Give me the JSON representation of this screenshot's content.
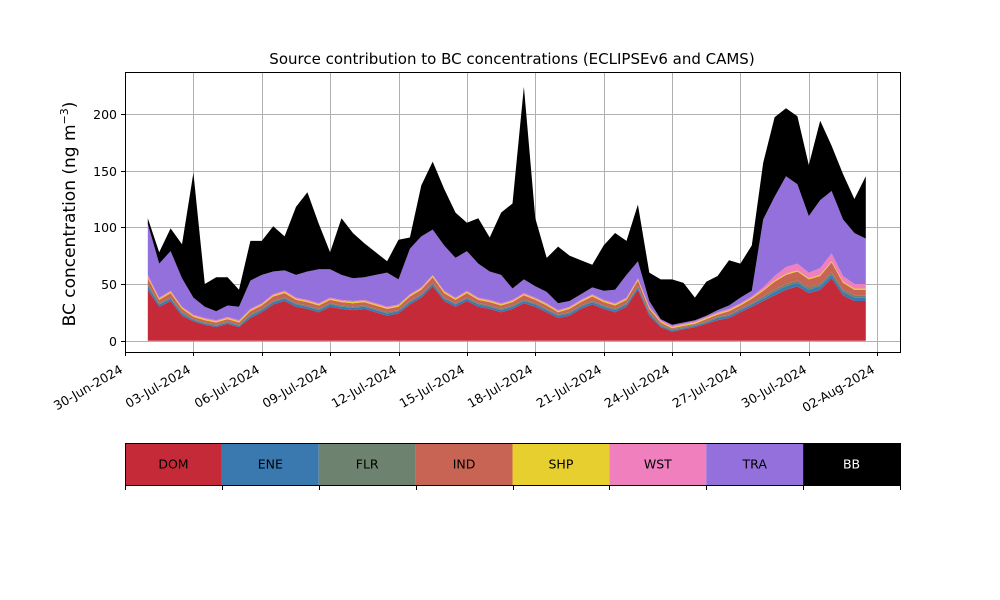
{
  "chart_data": {
    "type": "area",
    "stacked": true,
    "title": "Source contribution to BC concentrations (ECLIPSEv6 and CAMS)",
    "ylabel": "BC concentration (ng m",
    "ylabel_superscript": "−3",
    "ylabel_close": ")",
    "xlabel": "",
    "ylim": [
      -10,
      237
    ],
    "xlim": [
      "2024-06-30",
      "2024-08-03"
    ],
    "y_ticks": [
      0,
      50,
      100,
      150,
      200
    ],
    "x_ticks": [
      "30-Jun-2024",
      "03-Jul-2024",
      "06-Jul-2024",
      "09-Jul-2024",
      "12-Jul-2024",
      "15-Jul-2024",
      "18-Jul-2024",
      "21-Jul-2024",
      "24-Jul-2024",
      "27-Jul-2024",
      "30-Jul-2024",
      "02-Aug-2024"
    ],
    "grid": true,
    "x": [
      "2024-07-01",
      "2024-07-01T12",
      "2024-07-02",
      "2024-07-02T12",
      "2024-07-03",
      "2024-07-03T12",
      "2024-07-04",
      "2024-07-04T12",
      "2024-07-05",
      "2024-07-05T12",
      "2024-07-06",
      "2024-07-06T12",
      "2024-07-07",
      "2024-07-07T12",
      "2024-07-08",
      "2024-07-08T12",
      "2024-07-09",
      "2024-07-09T12",
      "2024-07-10",
      "2024-07-10T12",
      "2024-07-11",
      "2024-07-11T12",
      "2024-07-12",
      "2024-07-12T12",
      "2024-07-13",
      "2024-07-13T12",
      "2024-07-14",
      "2024-07-14T12",
      "2024-07-15",
      "2024-07-15T12",
      "2024-07-16",
      "2024-07-16T12",
      "2024-07-17",
      "2024-07-17T12",
      "2024-07-18",
      "2024-07-18T12",
      "2024-07-19",
      "2024-07-19T12",
      "2024-07-20",
      "2024-07-20T12",
      "2024-07-21",
      "2024-07-21T12",
      "2024-07-22",
      "2024-07-22T12",
      "2024-07-23",
      "2024-07-23T12",
      "2024-07-24",
      "2024-07-24T12",
      "2024-07-25",
      "2024-07-25T12",
      "2024-07-26",
      "2024-07-26T12",
      "2024-07-27",
      "2024-07-27T12",
      "2024-07-28",
      "2024-07-28T12",
      "2024-07-29",
      "2024-07-29T12",
      "2024-07-30",
      "2024-07-30T12",
      "2024-07-31",
      "2024-07-31T12",
      "2024-08-01",
      "2024-08-01T12"
    ],
    "series": [
      {
        "name": "DOM",
        "color": "#c42a37",
        "values": [
          45,
          30,
          35,
          22,
          17,
          14,
          12,
          15,
          12,
          20,
          25,
          32,
          35,
          30,
          28,
          25,
          30,
          28,
          27,
          28,
          25,
          22,
          24,
          32,
          38,
          48,
          35,
          30,
          35,
          30,
          28,
          25,
          28,
          33,
          30,
          25,
          20,
          22,
          28,
          32,
          28,
          25,
          30,
          45,
          22,
          12,
          8,
          10,
          12,
          15,
          18,
          20,
          25,
          30,
          35,
          40,
          45,
          48,
          42,
          45,
          55,
          40,
          35,
          35
        ]
      },
      {
        "name": "ENE",
        "color": "#3a78b0",
        "values": [
          3,
          2,
          2,
          2,
          1,
          1,
          1,
          1,
          1,
          2,
          2,
          2,
          2,
          2,
          2,
          2,
          2,
          2,
          2,
          2,
          2,
          2,
          2,
          2,
          2,
          2,
          2,
          2,
          2,
          2,
          2,
          2,
          2,
          2,
          2,
          2,
          2,
          2,
          2,
          2,
          2,
          2,
          2,
          2,
          2,
          1,
          1,
          1,
          1,
          1,
          2,
          2,
          2,
          2,
          2,
          3,
          3,
          3,
          3,
          3,
          3,
          3,
          3,
          3
        ]
      },
      {
        "name": "FLR",
        "color": "#6e8270",
        "values": [
          2,
          1,
          1,
          1,
          1,
          1,
          1,
          1,
          1,
          1,
          1,
          1,
          1,
          1,
          1,
          1,
          1,
          1,
          1,
          1,
          1,
          1,
          1,
          1,
          1,
          1,
          1,
          1,
          1,
          1,
          1,
          1,
          1,
          1,
          1,
          1,
          1,
          1,
          1,
          1,
          1,
          1,
          1,
          1,
          1,
          1,
          1,
          1,
          1,
          1,
          1,
          1,
          1,
          1,
          2,
          2,
          2,
          2,
          2,
          2,
          2,
          2,
          2,
          2
        ]
      },
      {
        "name": "IND",
        "color": "#c86454",
        "values": [
          5,
          3,
          4,
          3,
          2,
          2,
          2,
          2,
          2,
          3,
          3,
          4,
          4,
          3,
          3,
          3,
          3,
          3,
          3,
          3,
          3,
          3,
          3,
          4,
          4,
          5,
          4,
          3,
          4,
          3,
          3,
          3,
          3,
          4,
          3,
          3,
          2,
          3,
          3,
          4,
          3,
          3,
          3,
          5,
          3,
          2,
          1,
          1,
          1,
          2,
          2,
          3,
          3,
          4,
          5,
          7,
          8,
          8,
          7,
          7,
          9,
          6,
          5,
          5
        ]
      },
      {
        "name": "SHP",
        "color": "#e6cf2e",
        "values": [
          1,
          1,
          1,
          1,
          1,
          1,
          1,
          1,
          1,
          1,
          1,
          1,
          1,
          1,
          1,
          1,
          1,
          1,
          1,
          1,
          1,
          1,
          1,
          1,
          1,
          1,
          1,
          1,
          1,
          1,
          1,
          1,
          1,
          1,
          1,
          1,
          1,
          1,
          1,
          1,
          1,
          1,
          1,
          1,
          1,
          1,
          1,
          1,
          1,
          1,
          1,
          1,
          1,
          1,
          1,
          1,
          1,
          1,
          1,
          1,
          1,
          1,
          1,
          1
        ]
      },
      {
        "name": "WST",
        "color": "#f07fbe",
        "values": [
          2,
          1,
          1,
          1,
          1,
          1,
          1,
          1,
          1,
          1,
          1,
          1,
          1,
          1,
          1,
          1,
          1,
          1,
          1,
          1,
          1,
          1,
          1,
          1,
          1,
          1,
          1,
          1,
          1,
          1,
          1,
          1,
          1,
          1,
          1,
          1,
          1,
          1,
          1,
          1,
          1,
          1,
          1,
          1,
          1,
          1,
          1,
          1,
          1,
          1,
          1,
          1,
          1,
          1,
          2,
          4,
          6,
          6,
          5,
          6,
          7,
          5,
          4,
          4
        ]
      },
      {
        "name": "TRA",
        "color": "#9370db",
        "values": [
          45,
          30,
          35,
          25,
          15,
          10,
          8,
          10,
          12,
          25,
          25,
          20,
          18,
          20,
          25,
          30,
          25,
          22,
          20,
          20,
          25,
          30,
          22,
          40,
          45,
          40,
          40,
          35,
          35,
          30,
          25,
          25,
          10,
          12,
          10,
          10,
          6,
          5,
          5,
          6,
          8,
          12,
          20,
          15,
          5,
          1,
          1,
          1,
          1,
          1,
          2,
          3,
          5,
          5,
          60,
          70,
          80,
          70,
          50,
          60,
          55,
          50,
          45,
          40
        ]
      },
      {
        "name": "BB",
        "color": "#000000",
        "values": [
          5,
          10,
          20,
          30,
          110,
          20,
          30,
          25,
          15,
          35,
          30,
          40,
          30,
          60,
          70,
          40,
          15,
          50,
          40,
          30,
          20,
          10,
          35,
          10,
          45,
          60,
          50,
          40,
          25,
          40,
          30,
          55,
          75,
          170,
          60,
          30,
          50,
          40,
          30,
          20,
          40,
          50,
          30,
          50,
          25,
          35,
          40,
          35,
          20,
          30,
          30,
          40,
          30,
          40,
          50,
          70,
          60,
          60,
          45,
          70,
          40,
          40,
          30,
          55
        ]
      }
    ],
    "legend_placement": "below-plot"
  }
}
